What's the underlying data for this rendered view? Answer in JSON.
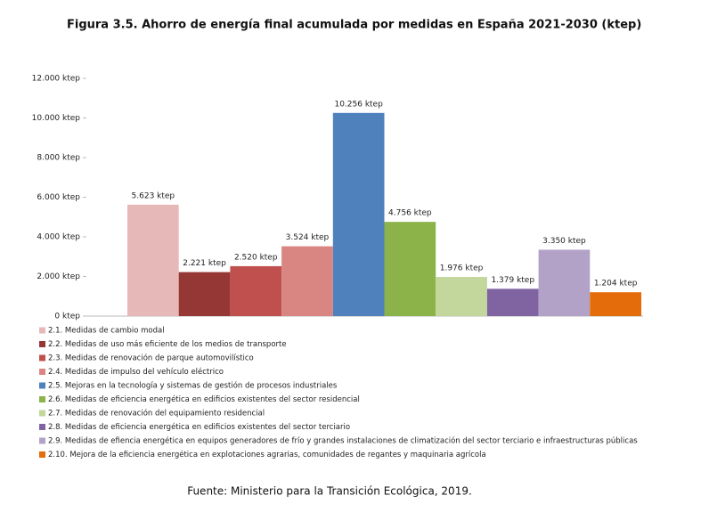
{
  "chart_data": {
    "type": "bar",
    "title": "Figura 3.5. Ahorro de energía final acumulada por medidas en España 2021-2030 (ktep)",
    "categories": [
      "2.1. Medidas de cambio modal",
      "2.2. Medidas de uso más eficiente de los medios de transporte",
      "2.3. Medidas de renovación de parque automovilístico",
      "2.4. Medidas de impulso del vehículo eléctrico",
      "2.5. Mejoras en la tecnología y sistemas de gestión de procesos industriales",
      "2.6. Medidas de eficiencia energética en edificios existentes del sector residencial",
      "2.7. Medidas de renovación del equipamiento residencial",
      "2.8. Medidas de eficiencia energética en edificios existentes del sector terciario",
      "2.9. Medidas de efiencia energética en equipos generadores de frío y grandes instalaciones de climatización del sector terciario e infraestructuras públicas",
      "2.10. Mejora de la eficiencia energética en explotaciones agrarias, comunidades de regantes y maquinaria agrícola"
    ],
    "values": [
      5623,
      2221,
      2520,
      3524,
      10256,
      4756,
      1976,
      1379,
      3350,
      1204
    ],
    "value_labels": [
      "5.623 ktep",
      "2.221 ktep",
      "2.520 ktep",
      "3.524 ktep",
      "10.256 ktep",
      "4.756 ktep",
      "1.976 ktep",
      "1.379 ktep",
      "3.350 ktep",
      "1.204 ktep"
    ],
    "colors": [
      "#e6b8b7",
      "#953735",
      "#c0504d",
      "#d98683",
      "#4f81bd",
      "#8cb24a",
      "#c3d69b",
      "#8064a2",
      "#b3a2c7",
      "#e46c0a"
    ],
    "ylim": [
      0,
      12000
    ],
    "yticks": [
      {
        "value": 0,
        "label": "0 ktep"
      },
      {
        "value": 2000,
        "label": "2.000 ktep"
      },
      {
        "value": 4000,
        "label": "4.000 ktep"
      },
      {
        "value": 6000,
        "label": "6.000 ktep"
      },
      {
        "value": 8000,
        "label": "8.000 ktep"
      },
      {
        "value": 10000,
        "label": "10.000 ktep"
      },
      {
        "value": 12000,
        "label": "12.000 ktep"
      }
    ],
    "source": "Fuente: Ministerio para la Transición Ecológica, 2019."
  }
}
